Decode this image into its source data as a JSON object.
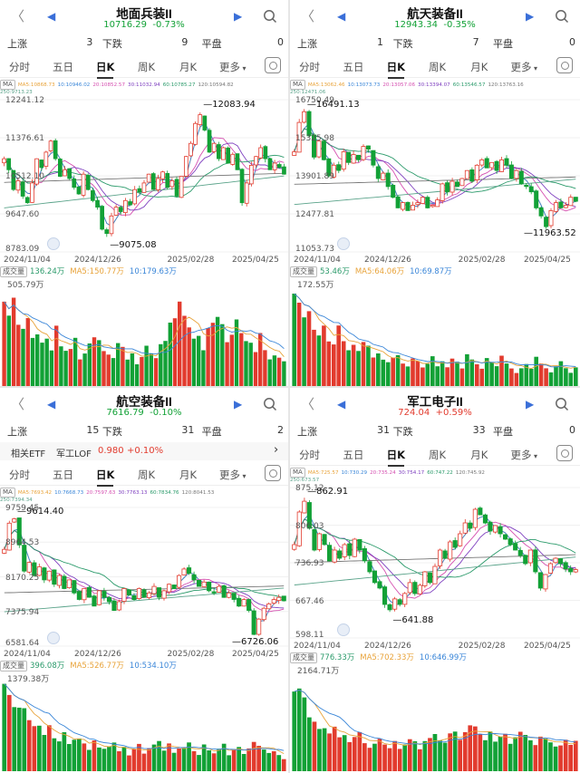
{
  "panels": [
    {
      "id": "p1",
      "title": "地面兵装II",
      "price": "10716.29",
      "change": "-0.73%",
      "change_dir": "down",
      "up_label": "上涨",
      "up_count": "3",
      "down_label": "下跌",
      "down_count": "9",
      "flat_label": "平盘",
      "flat_count": "0",
      "has_etf": false,
      "tabs": [
        "分时",
        "五日",
        "日K",
        "周K",
        "月K",
        "更多"
      ],
      "ma_tag": "MA",
      "ma_values": [
        "MA5:10868.73",
        "10:10946.02",
        "20:10852.57",
        "30:11032.94",
        "60:10785.27",
        "120:10594.82",
        "250:9713.23"
      ],
      "price_labels": [
        "12241.12",
        "11376.61",
        "10512.10",
        "9647.60",
        "8783.09"
      ],
      "annotation_high": "12083.94",
      "annotation_low": "9075.08",
      "dates": [
        "2024/11/04",
        "2024/12/26",
        "2025/02/28",
        "2025/04/25"
      ],
      "vol_tag": "成交量",
      "vol_main": "136.24万",
      "vol_ma5": "MA5:150.77万",
      "vol_ma10": "10:179.63万",
      "vol_max": "505.79万",
      "chart_data": {
        "type": "candlestick",
        "y_range": [
          8783.09,
          12241.12
        ],
        "y_ticks": [
          12241.12,
          11376.61,
          10512.1,
          9647.6,
          8783.09
        ],
        "high": 12083.94,
        "low": 9075.08,
        "close_path": [
          10900,
          10650,
          10200,
          10400,
          10050,
          9900,
          10350,
          10900,
          10700,
          11050,
          11300,
          10900,
          10500,
          10650,
          10450,
          10250,
          10100,
          10550,
          10200,
          9950,
          9800,
          9300,
          9200,
          9600,
          9800,
          9700,
          9950,
          9850,
          10200,
          10150,
          10350,
          10550,
          10200,
          10450,
          10600,
          10250,
          10400,
          10050,
          10500,
          10950,
          11250,
          11700,
          11900,
          11550,
          11050,
          11250,
          10900,
          11150,
          10800,
          11000,
          10650,
          9900,
          10350,
          10750,
          10950,
          11150,
          10900,
          10650,
          10800,
          10700,
          10550
        ],
        "volume_profile": [
          0.9,
          0.8,
          0.95,
          0.7,
          0.6,
          0.75,
          0.5,
          0.55,
          0.45,
          0.5,
          0.4,
          0.6,
          0.45,
          0.35,
          0.4,
          0.5,
          0.3,
          0.35,
          0.45,
          0.55,
          0.5,
          0.4,
          0.35,
          0.3,
          0.45,
          0.4,
          0.3,
          0.35,
          0.25,
          0.3,
          0.4,
          0.35,
          0.3,
          0.45,
          0.5,
          0.65,
          0.75,
          0.85,
          0.7,
          0.6,
          0.5,
          0.55,
          0.4,
          0.6,
          0.7,
          0.8,
          0.65,
          0.5,
          0.55,
          0.7,
          0.6,
          0.45,
          0.5,
          0.35,
          0.55,
          0.4,
          0.3,
          0.35,
          0.3,
          0.25
        ],
        "series_colors": {
          "up": "#e23b2e",
          "down": "#12a136"
        }
      }
    },
    {
      "id": "p2",
      "title": "航天装备II",
      "price": "12943.34",
      "change": "-0.35%",
      "change_dir": "down",
      "up_label": "上涨",
      "up_count": "1",
      "down_label": "下跌",
      "down_count": "7",
      "flat_label": "平盘",
      "flat_count": "0",
      "has_etf": false,
      "tabs": [
        "分时",
        "五日",
        "日K",
        "周K",
        "月K",
        "更多"
      ],
      "ma_tag": "MA",
      "ma_values": [
        "MA5:13062.46",
        "10:13073.73",
        "20:13057.06",
        "30:13394.07",
        "60:13546.57",
        "120:13763.16",
        "250:12471.06"
      ],
      "price_labels": [
        "16750.49",
        "15325.98",
        "13901.89",
        "12477.81",
        "11053.73"
      ],
      "annotation_high": "16491.13",
      "annotation_low": "11963.52",
      "dates": [
        "2024/11/04",
        "2024/12/26",
        "2025/02/28",
        "2025/04/25"
      ],
      "vol_tag": "成交量",
      "vol_main": "53.46万",
      "vol_ma5": "MA5:64.06万",
      "vol_ma10": "10:69.87万",
      "vol_max": "172.55万",
      "chart_data": {
        "type": "candlestick",
        "y_range": [
          11053.73,
          16750.49
        ],
        "y_ticks": [
          16750.49,
          15325.98,
          13901.89,
          12477.81,
          11053.73
        ],
        "high": 16491.13,
        "low": 11963.52,
        "close_path": [
          14800,
          15900,
          16300,
          15400,
          14600,
          15200,
          14500,
          13900,
          14300,
          14100,
          14800,
          14400,
          14700,
          14500,
          15000,
          14900,
          14300,
          13800,
          14000,
          13500,
          13100,
          12700,
          12900,
          12600,
          12800,
          12900,
          13100,
          12700,
          12800,
          13000,
          13600,
          13300,
          13700,
          13500,
          13800,
          14100,
          13700,
          14300,
          14500,
          14200,
          14400,
          14100,
          14500,
          14300,
          13800,
          14100,
          13600,
          13500,
          13300,
          12700,
          12400,
          12000,
          12600,
          12900,
          12700,
          12800,
          13100,
          12950
        ],
        "volume_profile": [
          0.95,
          0.85,
          0.7,
          0.8,
          0.6,
          0.55,
          0.65,
          0.5,
          0.45,
          0.6,
          0.5,
          0.4,
          0.45,
          0.35,
          0.5,
          0.4,
          0.3,
          0.35,
          0.3,
          0.25,
          0.3,
          0.35,
          0.25,
          0.2,
          0.3,
          0.25,
          0.2,
          0.25,
          0.3,
          0.2,
          0.25,
          0.2,
          0.3,
          0.25,
          0.2,
          0.35,
          0.3,
          0.25,
          0.2,
          0.3,
          0.25,
          0.2,
          0.3,
          0.25,
          0.2,
          0.15,
          0.2,
          0.25,
          0.2,
          0.3,
          0.25,
          0.2,
          0.15,
          0.2,
          0.25,
          0.2,
          0.15,
          0.2
        ],
        "series_colors": {
          "up": "#e23b2e",
          "down": "#12a136"
        }
      }
    },
    {
      "id": "p3",
      "title": "航空装备II",
      "price": "7616.79",
      "change": "-0.10%",
      "change_dir": "down",
      "up_label": "上涨",
      "up_count": "15",
      "down_label": "下跌",
      "down_count": "31",
      "flat_label": "平盘",
      "flat_count": "2",
      "has_etf": true,
      "etf_label": "相关ETF",
      "etf_name": "军工LOF",
      "etf_price": "0.980",
      "etf_change": "+0.10%",
      "tabs": [
        "分时",
        "五日",
        "日K",
        "周K",
        "月K",
        "更多"
      ],
      "ma_tag": "MA",
      "ma_values": [
        "MA5:7693.42",
        "10:7668.73",
        "20:7597.63",
        "30:7763.13",
        "60:7834.76",
        "120:8041.53",
        "250:7394.34"
      ],
      "price_labels": [
        "9759.45",
        "8964.53",
        "8170.25",
        "7375.94",
        "6581.64"
      ],
      "annotation_high": "9614.40",
      "annotation_low": "6726.06",
      "dates": [
        "2024/11/04",
        "2024/12/26",
        "2025/02/28",
        "2025/04/25"
      ],
      "vol_tag": "成交量",
      "vol_main": "396.08万",
      "vol_ma5": "MA5:526.77万",
      "vol_ma10": "10:534.10万",
      "vol_max": "1379.38万",
      "chart_data": {
        "type": "candlestick",
        "y_range": [
          6581.64,
          9759.45
        ],
        "y_ticks": [
          9759.45,
          8964.53,
          8170.25,
          7375.94,
          6581.64
        ],
        "high": 9614.4,
        "low": 6726.06,
        "close_path": [
          8800,
          9400,
          9500,
          8900,
          8300,
          8500,
          8200,
          8400,
          8100,
          8300,
          8000,
          8200,
          7900,
          8100,
          7800,
          7650,
          7900,
          7700,
          7500,
          7850,
          7700,
          7600,
          7400,
          7600,
          7900,
          7750,
          7650,
          7900,
          7700,
          7800,
          7950,
          7700,
          7850,
          8000,
          7900,
          8200,
          8350,
          8250,
          8100,
          7950,
          8050,
          7850,
          7800,
          7950,
          7700,
          7800,
          7650,
          7500,
          7650,
          7400,
          6850,
          7200,
          7450,
          7550,
          7650,
          7700,
          7620
        ],
        "volume_profile": [
          0.95,
          0.9,
          0.8,
          0.7,
          0.75,
          0.6,
          0.55,
          0.5,
          0.45,
          0.55,
          0.4,
          0.35,
          0.45,
          0.3,
          0.35,
          0.4,
          0.3,
          0.25,
          0.35,
          0.3,
          0.25,
          0.3,
          0.35,
          0.25,
          0.3,
          0.2,
          0.25,
          0.3,
          0.2,
          0.25,
          0.3,
          0.35,
          0.25,
          0.3,
          0.2,
          0.25,
          0.3,
          0.35,
          0.25,
          0.2,
          0.3,
          0.25,
          0.2,
          0.25,
          0.3,
          0.2,
          0.25,
          0.3,
          0.2,
          0.25,
          0.35,
          0.3,
          0.25,
          0.2,
          0.25,
          0.2,
          0.15
        ],
        "series_colors": {
          "up": "#e23b2e",
          "down": "#12a136"
        }
      }
    },
    {
      "id": "p4",
      "title": "军工电子II",
      "price": "724.04",
      "change": "+0.59%",
      "change_dir": "up",
      "up_label": "上涨",
      "up_count": "31",
      "down_label": "下跌",
      "down_count": "33",
      "flat_label": "平盘",
      "flat_count": "0",
      "has_etf": false,
      "tabs": [
        "分时",
        "五日",
        "日K",
        "周K",
        "月K",
        "更多"
      ],
      "ma_tag": "MA",
      "ma_values": [
        "MA5:725.57",
        "10:730.29",
        "20:735.24",
        "30:754.17",
        "60:747.22",
        "120:745.92",
        "250:673.57"
      ],
      "price_labels": [
        "875.12",
        "806.03",
        "736.93",
        "667.46",
        "598.11"
      ],
      "annotation_high": "862.91",
      "annotation_low": "641.88",
      "dates": [
        "2024/11/04",
        "2024/12/26",
        "2025/02/28",
        "2025/04/25"
      ],
      "vol_tag": "成交量",
      "vol_main": "776.33万",
      "vol_ma5": "MA5:702.33万",
      "vol_ma10": "10:646.99万",
      "vol_max": "2164.71万",
      "chart_data": {
        "type": "candlestick",
        "y_range": [
          598.11,
          875.12
        ],
        "y_ticks": [
          875.12,
          806.03,
          736.93,
          667.46,
          598.11
        ],
        "high": 862.91,
        "low": 641.88,
        "close_path": [
          770,
          830,
          850,
          800,
          760,
          790,
          770,
          740,
          760,
          745,
          770,
          750,
          780,
          760,
          740,
          720,
          700,
          690,
          660,
          650,
          670,
          660,
          680,
          700,
          680,
          695,
          720,
          700,
          730,
          760,
          745,
          775,
          765,
          790,
          810,
          800,
          835,
          825,
          810,
          795,
          805,
          790,
          780,
          770,
          760,
          750,
          735,
          760,
          720,
          690,
          715,
          735,
          745,
          735,
          725,
          720,
          724
        ],
        "volume_profile": [
          0.9,
          0.95,
          0.8,
          0.6,
          0.55,
          0.45,
          0.5,
          0.4,
          0.45,
          0.35,
          0.4,
          0.3,
          0.35,
          0.4,
          0.3,
          0.25,
          0.3,
          0.35,
          0.3,
          0.25,
          0.3,
          0.25,
          0.3,
          0.35,
          0.3,
          0.25,
          0.3,
          0.35,
          0.4,
          0.35,
          0.3,
          0.4,
          0.45,
          0.35,
          0.4,
          0.5,
          0.45,
          0.4,
          0.35,
          0.4,
          0.3,
          0.35,
          0.4,
          0.3,
          0.35,
          0.45,
          0.4,
          0.35,
          0.3,
          0.4,
          0.35,
          0.3,
          0.25,
          0.3,
          0.35,
          0.3,
          0.35
        ],
        "series_colors": {
          "up": "#e23b2e",
          "down": "#12a136"
        }
      }
    }
  ]
}
